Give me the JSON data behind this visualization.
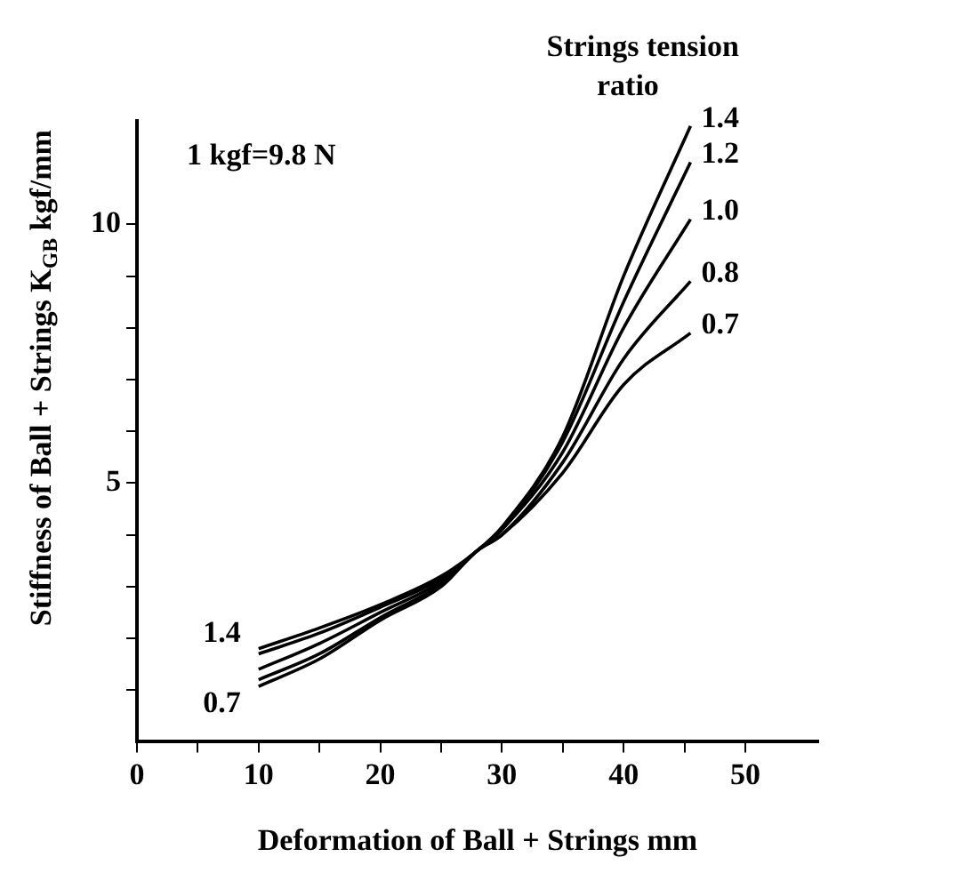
{
  "chart_data": {
    "type": "line",
    "xlabel": "Deformation of Ball + Strings mm",
    "ylabel": "Stiffness of Ball + Strings K$_{GB}$ kgf/mm",
    "legend_title": "Strings tension ratio",
    "xlim": [
      0,
      56
    ],
    "ylim": [
      0,
      12
    ],
    "xticks": [
      0,
      {
        "value": 5,
        "label": null
      },
      10,
      {
        "value": 15,
        "label": null
      },
      20,
      {
        "value": 25,
        "label": null
      },
      30,
      {
        "value": 35,
        "label": null
      },
      40,
      {
        "value": 45,
        "label": null
      },
      50
    ],
    "yticks": [
      {
        "value": 1,
        "label": null
      },
      {
        "value": 2,
        "label": null
      },
      {
        "value": 3,
        "label": null
      },
      {
        "value": 4,
        "label": null
      },
      5,
      {
        "value": 6,
        "label": null
      },
      {
        "value": 7,
        "label": null
      },
      {
        "value": 8,
        "label": null
      },
      {
        "value": 9,
        "label": null
      },
      10
    ],
    "grid": false,
    "legend": false,
    "marker": "none",
    "line_style": "solid",
    "annotations": [
      "1 kgf=9.8 N",
      {
        "text": "1.4",
        "x": 10,
        "y": 1.8
      },
      {
        "text": "0.7",
        "x": 10,
        "y": 1.07
      }
    ],
    "x": [
      10,
      15,
      20,
      25,
      28,
      30,
      35,
      40,
      45.5
    ],
    "series": [
      {
        "name": "1.4",
        "color": "#000000",
        "values": [
          1.8,
          2.2,
          2.65,
          3.2,
          3.7,
          4.15,
          5.9,
          9.0,
          11.9
        ]
      },
      {
        "name": "1.2",
        "color": "#000000",
        "values": [
          1.7,
          2.1,
          2.6,
          3.15,
          3.7,
          4.1,
          5.8,
          8.5,
          11.2
        ]
      },
      {
        "name": "1.0",
        "color": "#000000",
        "values": [
          1.4,
          1.9,
          2.5,
          3.1,
          3.7,
          4.1,
          5.6,
          8.0,
          10.1
        ]
      },
      {
        "name": "0.8",
        "color": "#000000",
        "values": [
          1.2,
          1.7,
          2.4,
          3.05,
          3.7,
          4.0,
          5.4,
          7.4,
          8.9
        ]
      },
      {
        "name": "0.7",
        "color": "#000000",
        "values": [
          1.07,
          1.6,
          2.35,
          3.0,
          3.7,
          4.0,
          5.2,
          6.9,
          7.9
        ]
      }
    ]
  }
}
